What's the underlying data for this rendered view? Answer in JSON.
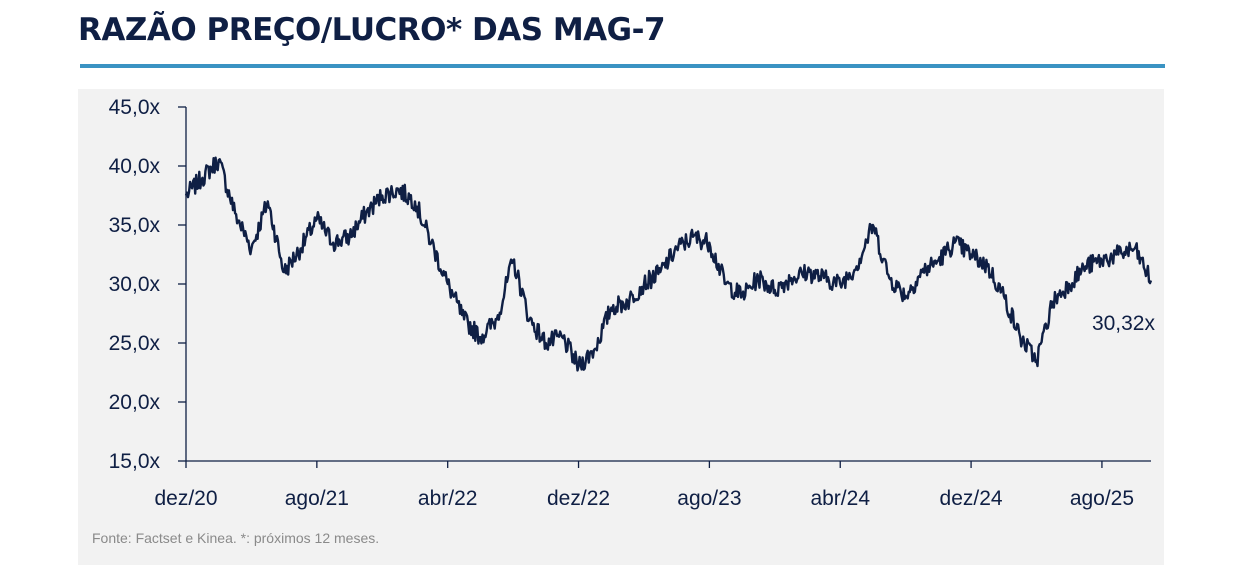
{
  "title": "RAZÃO PREÇO/LUCRO* DAS MAG-7",
  "source": "Fonte: Factset e Kinea. *:  próximos 12 meses.",
  "colors": {
    "line": "#0f1f44",
    "accent_rule": "#3a93c3",
    "panel_bg": "#f2f2f2"
  },
  "chart_data": {
    "type": "line",
    "title": "RAZÃO PREÇO/LUCRO* DAS MAG-7",
    "xlabel": "",
    "ylabel": "",
    "x_ticks": [
      "dez/20",
      "ago/21",
      "abr/22",
      "dez/22",
      "ago/23",
      "abr/24",
      "dez/24",
      "ago/25"
    ],
    "y_ticks": [
      "15,0x",
      "20,0x",
      "25,0x",
      "30,0x",
      "35,0x",
      "40,0x",
      "45,0x"
    ],
    "ylim": [
      15,
      45
    ],
    "xlim": [
      "2020-12",
      "2025-11"
    ],
    "grid": false,
    "last_value_label": "30,32x",
    "series": [
      {
        "x": [
          "2020-12",
          "2021-01",
          "2021-02",
          "2021-03",
          "2021-04",
          "2021-05",
          "2021-06",
          "2021-07",
          "2021-08",
          "2021-09",
          "2021-10",
          "2021-11",
          "2021-12",
          "2022-01",
          "2022-02",
          "2022-03",
          "2022-04",
          "2022-05",
          "2022-06",
          "2022-07",
          "2022-08",
          "2022-09",
          "2022-10",
          "2022-11",
          "2022-12",
          "2023-01",
          "2023-02",
          "2023-03",
          "2023-04",
          "2023-05",
          "2023-06",
          "2023-07",
          "2023-08",
          "2023-09",
          "2023-10",
          "2023-11",
          "2023-12",
          "2024-01",
          "2024-02",
          "2024-03",
          "2024-04",
          "2024-05",
          "2024-06",
          "2024-07",
          "2024-08",
          "2024-09",
          "2024-10",
          "2024-11",
          "2024-12",
          "2025-01",
          "2025-02",
          "2025-03",
          "2025-04",
          "2025-05",
          "2025-06",
          "2025-07",
          "2025-08",
          "2025-09",
          "2025-10",
          "2025-11"
        ],
        "values": [
          37.5,
          39.0,
          40.5,
          36.0,
          33.0,
          37.0,
          31.0,
          33.0,
          35.5,
          33.5,
          34.0,
          36.0,
          37.5,
          38.0,
          37.0,
          33.5,
          30.0,
          27.0,
          25.5,
          27.0,
          32.0,
          27.0,
          25.0,
          25.5,
          23.0,
          24.5,
          28.0,
          28.5,
          30.0,
          31.0,
          33.0,
          34.0,
          33.5,
          30.0,
          29.0,
          30.5,
          29.5,
          30.5,
          31.0,
          30.5,
          30.0,
          31.5,
          35.0,
          30.5,
          29.0,
          31.0,
          32.0,
          33.5,
          32.5,
          31.5,
          29.0,
          25.5,
          23.5,
          28.5,
          30.0,
          31.5,
          32.0,
          32.5,
          33.0,
          30.3
        ]
      }
    ]
  }
}
